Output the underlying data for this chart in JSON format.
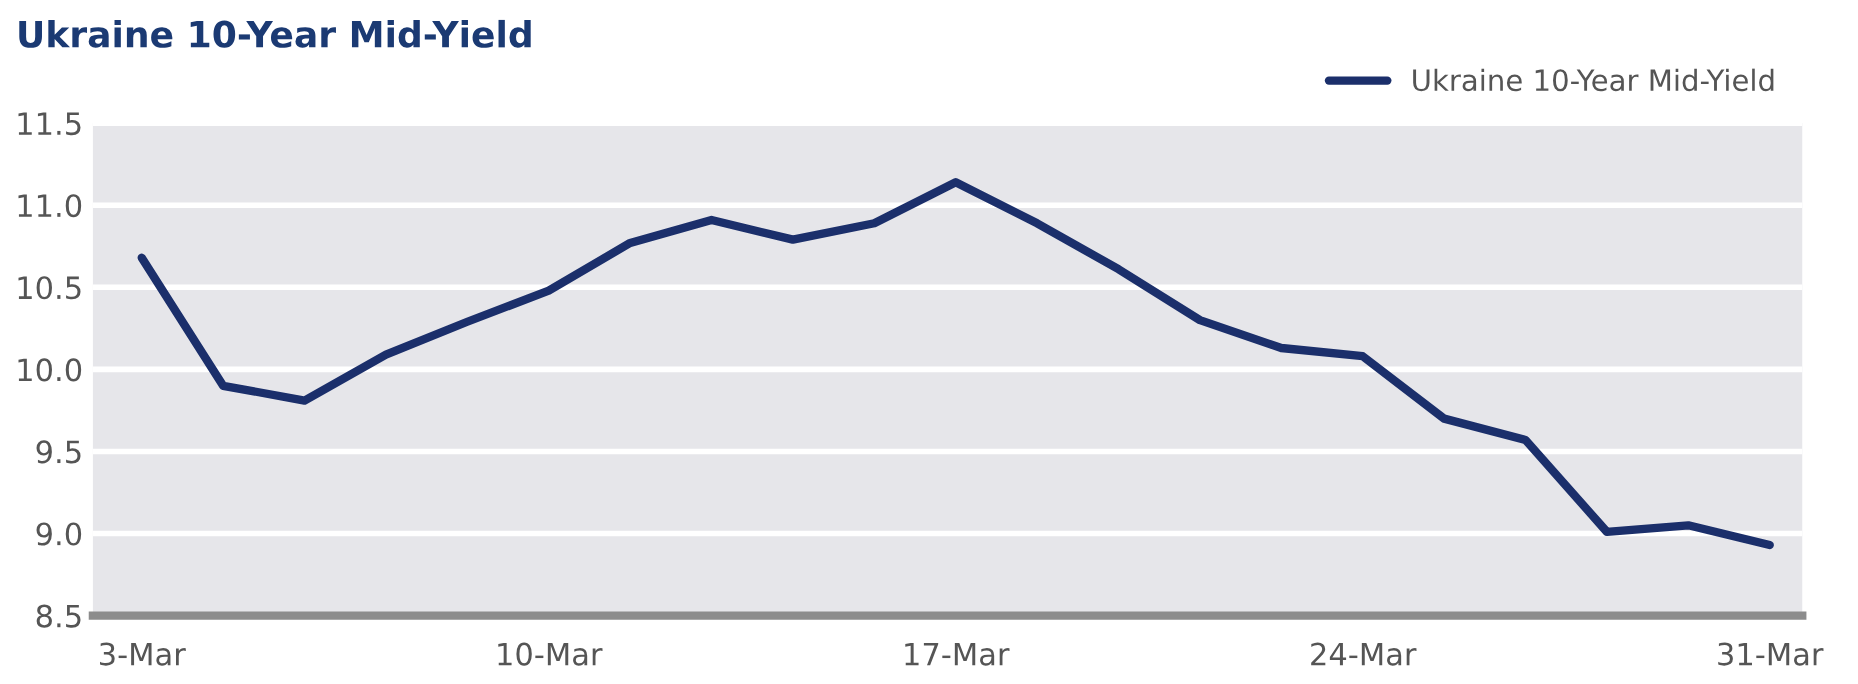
{
  "chart_data": {
    "type": "line",
    "title": "Ukraine 10-Year Mid-Yield",
    "categories": [
      "3-Mar",
      null,
      null,
      null,
      null,
      "10-Mar",
      null,
      null,
      null,
      null,
      "17-Mar",
      null,
      null,
      null,
      null,
      "24-Mar",
      null,
      null,
      null,
      null,
      "31-Mar"
    ],
    "series": [
      {
        "name": "Ukraine 10-Year Mid-Yield",
        "color": "#1b2f6b",
        "values": [
          10.68,
          9.9,
          9.81,
          10.09,
          10.29,
          10.48,
          10.77,
          10.91,
          10.79,
          10.89,
          11.14,
          10.89,
          10.61,
          10.3,
          10.13,
          10.08,
          9.7,
          9.57,
          9.01,
          9.05,
          8.93
        ]
      }
    ],
    "ylim": [
      8.5,
      11.5
    ],
    "yticks": [
      {
        "value": 8.5,
        "label": "8.5"
      },
      {
        "value": 9,
        "label": "9.0"
      },
      {
        "value": 9.5,
        "label": "9.5"
      },
      {
        "value": 10,
        "label": "10.0"
      },
      {
        "value": 10.5,
        "label": "10.5"
      },
      {
        "value": 11,
        "label": "11.0"
      },
      {
        "value": 11.5,
        "label": "11.5"
      }
    ],
    "grid": "y",
    "legend": "top right",
    "marker": "none",
    "line_style": "solid"
  }
}
